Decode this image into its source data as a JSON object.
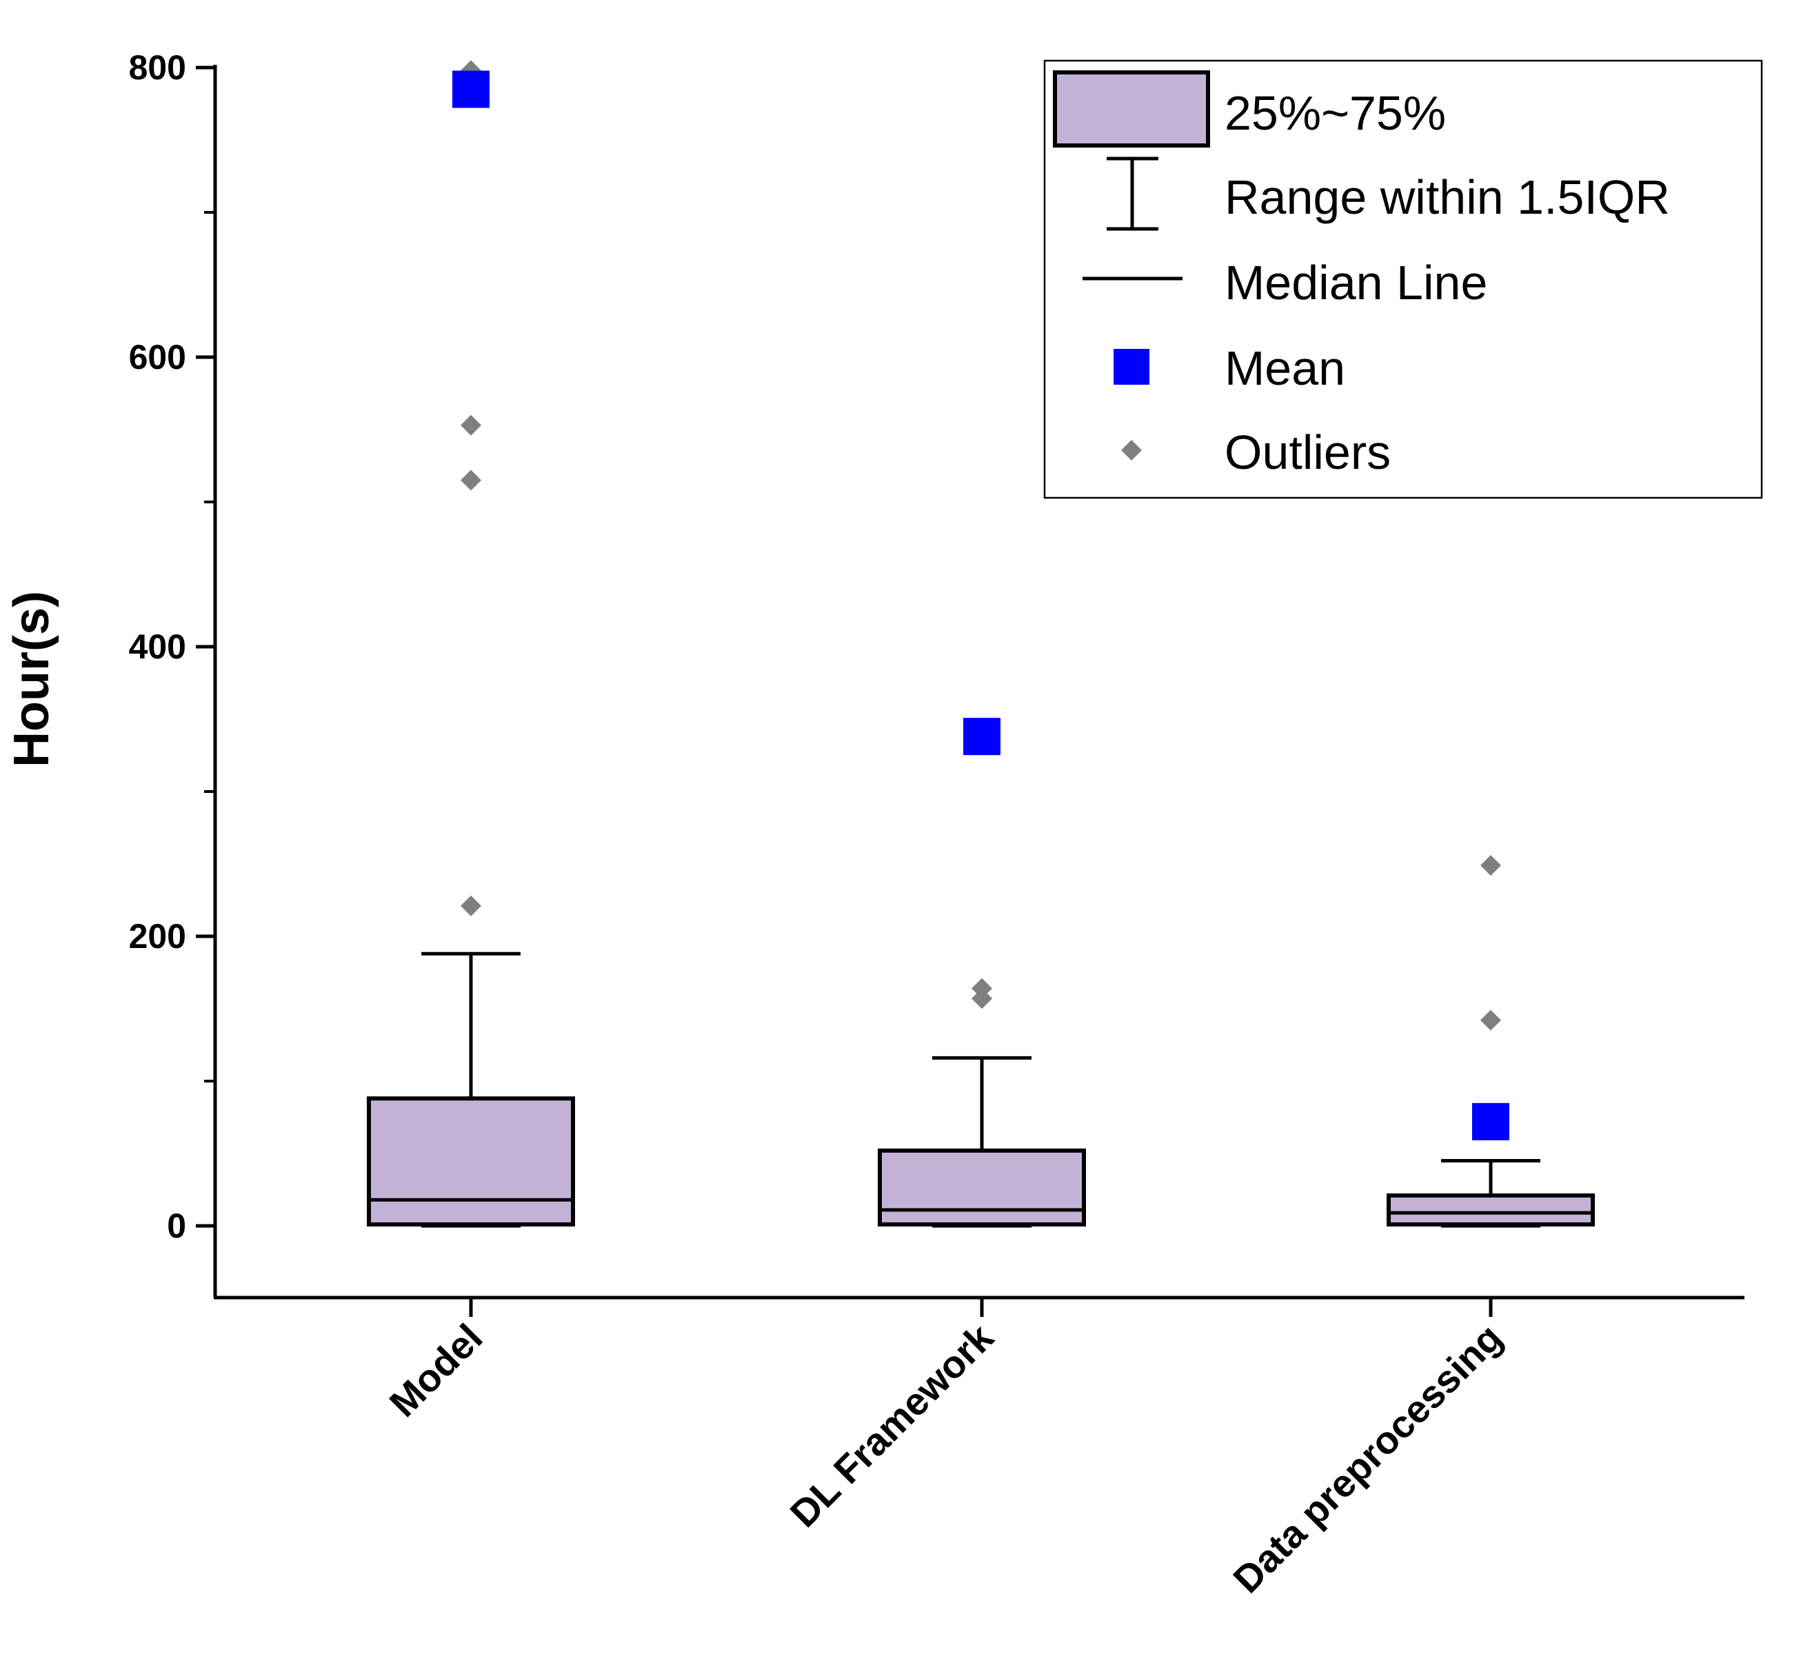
{
  "chart_data": {
    "type": "box",
    "ylabel": "Hour(s)",
    "xlabel": "",
    "ylim": [
      -50,
      800
    ],
    "yticks": [
      0,
      200,
      400,
      600,
      800
    ],
    "grid": false,
    "legend_placement": "top-right",
    "categories": [
      "Model",
      "DL Framework",
      "Data preprocessing"
    ],
    "boxes": [
      {
        "category": "Model",
        "whisker_low": 0,
        "q1": 1,
        "median": 18,
        "q3": 88,
        "whisker_high": 188,
        "mean": 785,
        "outliers": [
          221,
          515,
          553,
          798
        ]
      },
      {
        "category": "DL Framework",
        "whisker_low": 0,
        "q1": 1,
        "median": 11,
        "q3": 52,
        "whisker_high": 116,
        "mean": 338,
        "outliers": [
          157,
          164
        ]
      },
      {
        "category": "Data preprocessing",
        "whisker_low": 0,
        "q1": 1,
        "median": 9,
        "q3": 21,
        "whisker_high": 45,
        "mean": 72,
        "outliers": [
          142,
          249
        ]
      }
    ],
    "legend": {
      "box": "25%~75%",
      "whisker": "Range within 1.5IQR",
      "median": "Median Line",
      "mean": "Mean",
      "outliers": "Outliers"
    },
    "colors": {
      "box_fill": "#c2b3d6",
      "mean": "#0000ff",
      "outlier": "#7f7f7f",
      "axis": "#000000"
    }
  }
}
